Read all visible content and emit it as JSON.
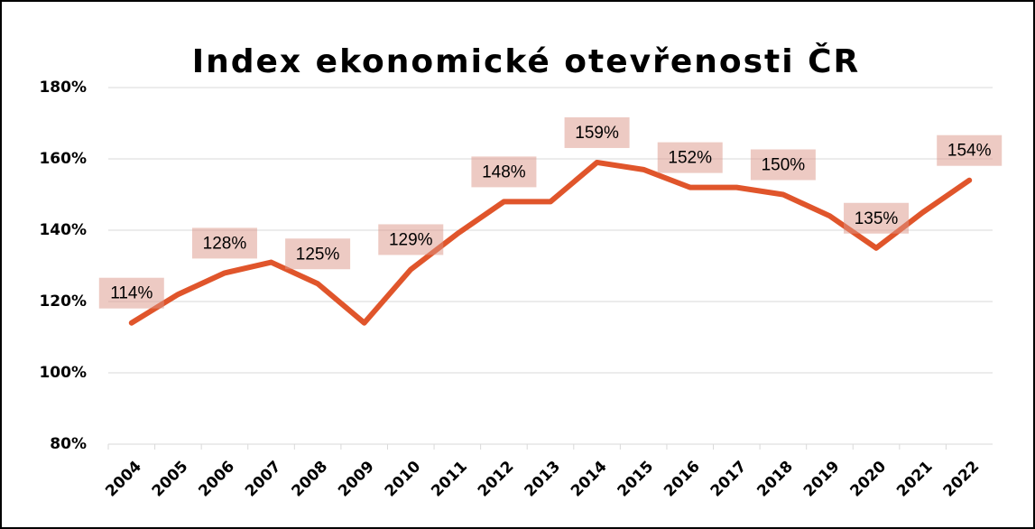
{
  "chart_data": {
    "type": "line",
    "title": "Index ekonomické otevřenosti ČR",
    "categories": [
      "2004",
      "2005",
      "2006",
      "2007",
      "2008",
      "2009",
      "2010",
      "2011",
      "2012",
      "2013",
      "2014",
      "2015",
      "2016",
      "2017",
      "2018",
      "2019",
      "2020",
      "2021",
      "2022"
    ],
    "series": [
      {
        "name": "Index ekonomické otevřenosti",
        "color": "#e0552b",
        "values": [
          114,
          122,
          128,
          131,
          125,
          114,
          129,
          139,
          148,
          148,
          159,
          157,
          152,
          152,
          150,
          144,
          135,
          145,
          154
        ],
        "value_labels": [
          "114%",
          null,
          "128%",
          null,
          "125%",
          null,
          "129%",
          null,
          "148%",
          null,
          "159%",
          null,
          "152%",
          null,
          "150%",
          null,
          "135%",
          null,
          "154%"
        ]
      }
    ],
    "ylim": [
      80,
      180
    ],
    "yticks": [
      {
        "value": 80,
        "label": "80%"
      },
      {
        "value": 100,
        "label": "100%"
      },
      {
        "value": 120,
        "label": "120%"
      },
      {
        "value": 140,
        "label": "140%"
      },
      {
        "value": 160,
        "label": "160%"
      },
      {
        "value": 180,
        "label": "180%"
      }
    ],
    "grid": true
  }
}
